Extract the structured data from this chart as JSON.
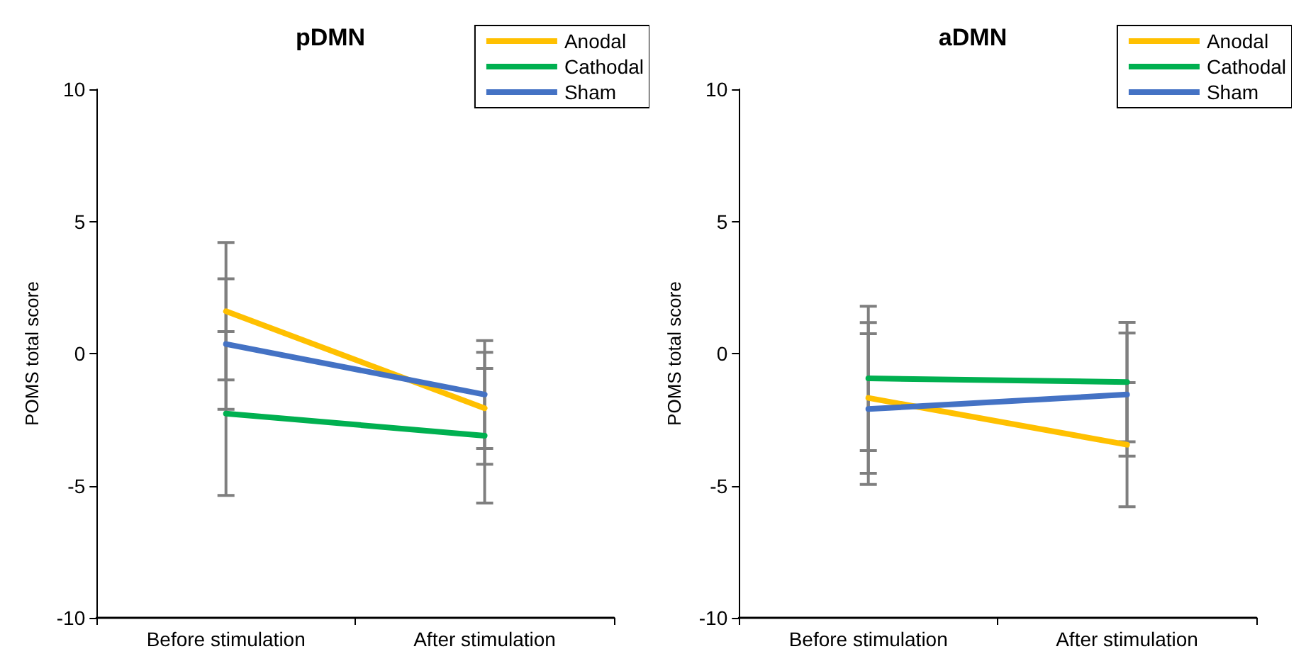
{
  "chart_data": [
    {
      "type": "line",
      "title": "pDMN",
      "ylabel": "POMS total score",
      "categories": [
        "Before stimulation",
        "After stimulation"
      ],
      "ylim": [
        -10,
        10
      ],
      "yticks": [
        -10,
        -5,
        0,
        5,
        10
      ],
      "grid": false,
      "legend": "top right",
      "marker": "none",
      "series": [
        {
          "name": "Anodal",
          "color": "#ffc000",
          "values": [
            1.6,
            -2.07
          ],
          "errors": [
            2.6,
            2.12
          ]
        },
        {
          "name": "Cathodal",
          "color": "#00b050",
          "values": [
            -2.27,
            -3.11
          ],
          "errors": [
            3.1,
            2.55
          ]
        },
        {
          "name": "Sham",
          "color": "#4472c4",
          "values": [
            0.36,
            -1.55
          ],
          "errors": [
            2.47,
            2.04
          ]
        }
      ]
    },
    {
      "type": "line",
      "title": "aDMN",
      "ylabel": "POMS total score",
      "categories": [
        "Before stimulation",
        "After stimulation"
      ],
      "ylim": [
        -10,
        10
      ],
      "yticks": [
        -10,
        -5,
        0,
        5,
        10
      ],
      "grid": false,
      "legend": "top right",
      "marker": "none",
      "series": [
        {
          "name": "Anodal",
          "color": "#ffc000",
          "values": [
            -1.68,
            -3.45
          ],
          "errors": [
            2.85,
            2.35
          ]
        },
        {
          "name": "Cathodal",
          "color": "#00b050",
          "values": [
            -0.94,
            -1.08
          ],
          "errors": [
            2.73,
            2.26
          ]
        },
        {
          "name": "Sham",
          "color": "#4472c4",
          "values": [
            -2.1,
            -1.55
          ],
          "errors": [
            2.85,
            2.33
          ]
        }
      ]
    }
  ]
}
